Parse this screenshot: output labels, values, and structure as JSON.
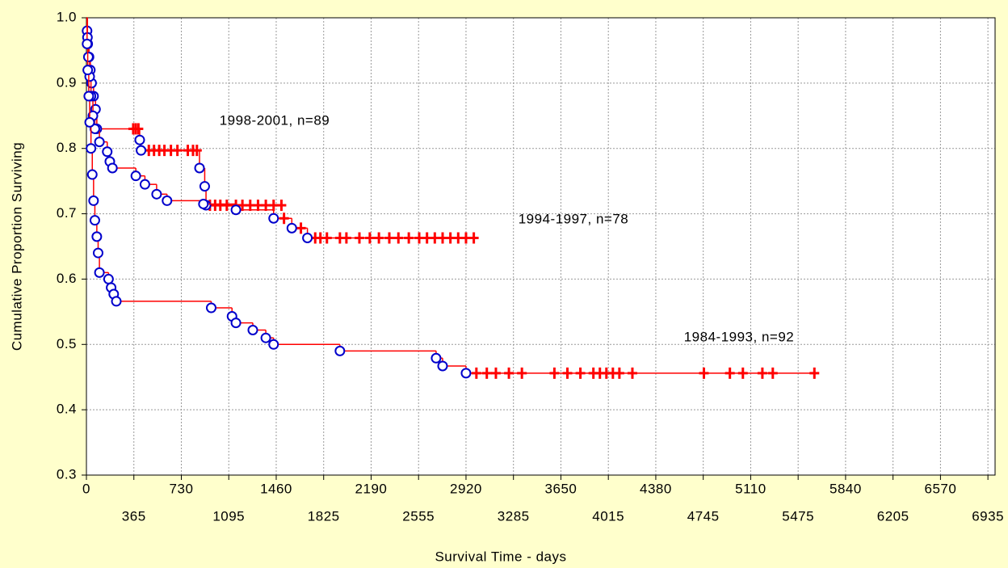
{
  "chart_data": {
    "type": "survival",
    "x_label": "Survival Time - days",
    "y_label": "Cumulative Proportion Surviving",
    "xlim": [
      0,
      6990
    ],
    "ylim": [
      0.3,
      1.0
    ],
    "xticks": [
      0,
      365,
      730,
      1095,
      1460,
      1825,
      2190,
      2555,
      2920,
      3285,
      3650,
      4015,
      4380,
      4745,
      5110,
      5475,
      5840,
      6205,
      6570,
      6935
    ],
    "yticks": [
      {
        "value": 0.3,
        "label": "0.3"
      },
      {
        "value": 0.4,
        "label": "0.4"
      },
      {
        "value": 0.5,
        "label": "0.5"
      },
      {
        "value": 0.6,
        "label": "0.6"
      },
      {
        "value": 0.7,
        "label": "0.7"
      },
      {
        "value": 0.8,
        "label": "0.8"
      },
      {
        "value": 0.9,
        "label": "0.9"
      },
      {
        "value": 1.0,
        "label": "1.0"
      }
    ],
    "grid": true,
    "line_color": "#ff0000",
    "event_color": "#0000cc",
    "series": [
      {
        "name": "1998-2001, n=89",
        "event_times": [
          0,
          5,
          10,
          20,
          30,
          40,
          55,
          70,
          80,
          410,
          420,
          870,
          910,
          920
        ],
        "survival": [
          1.0,
          0.98,
          0.96,
          0.94,
          0.92,
          0.9,
          0.88,
          0.86,
          0.83,
          0.813,
          0.797,
          0.77,
          0.742,
          0.713
        ],
        "censored_times": [
          360,
          380,
          400,
          480,
          520,
          560,
          600,
          650,
          700,
          780,
          820,
          850,
          950,
          990,
          1030,
          1080,
          1150,
          1200,
          1260,
          1320,
          1380,
          1440,
          1500
        ],
        "censored_survival": [
          0.83,
          0.83,
          0.83,
          0.797,
          0.797,
          0.797,
          0.797,
          0.797,
          0.797,
          0.797,
          0.797,
          0.797,
          0.713,
          0.713,
          0.713,
          0.713,
          0.713,
          0.713,
          0.713,
          0.713,
          0.713,
          0.713,
          0.713
        ]
      },
      {
        "name": "1994-1997, n=78",
        "event_times": [
          0,
          8,
          15,
          25,
          35,
          50,
          65,
          100,
          160,
          180,
          200,
          380,
          450,
          540,
          620,
          900,
          1150,
          1440,
          1580,
          1700
        ],
        "survival": [
          1.0,
          0.97,
          0.94,
          0.91,
          0.88,
          0.85,
          0.83,
          0.81,
          0.795,
          0.78,
          0.77,
          0.758,
          0.745,
          0.73,
          0.72,
          0.715,
          0.706,
          0.693,
          0.678,
          0.663
        ],
        "censored_times": [
          1520,
          1650,
          1760,
          1800,
          1850,
          1950,
          2000,
          2100,
          2180,
          2250,
          2330,
          2400,
          2480,
          2560,
          2620,
          2680,
          2740,
          2800,
          2860,
          2920,
          2980
        ],
        "censored_survival": [
          0.693,
          0.678,
          0.663,
          0.663,
          0.663,
          0.663,
          0.663,
          0.663,
          0.663,
          0.663,
          0.663,
          0.663,
          0.663,
          0.663,
          0.663,
          0.663,
          0.663,
          0.663,
          0.663,
          0.663,
          0.663
        ]
      },
      {
        "name": "1984-1993, n=92",
        "event_times": [
          0,
          5,
          10,
          18,
          25,
          35,
          45,
          55,
          65,
          80,
          90,
          100,
          170,
          190,
          210,
          230,
          960,
          1120,
          1150,
          1280,
          1380,
          1440,
          1950,
          2690,
          2740,
          2920
        ],
        "survival": [
          1.0,
          0.96,
          0.92,
          0.88,
          0.84,
          0.8,
          0.76,
          0.72,
          0.69,
          0.665,
          0.64,
          0.61,
          0.6,
          0.587,
          0.577,
          0.566,
          0.556,
          0.543,
          0.533,
          0.522,
          0.51,
          0.5,
          0.49,
          0.479,
          0.467,
          0.456
        ],
        "censored_times": [
          3000,
          3080,
          3150,
          3250,
          3350,
          3600,
          3700,
          3800,
          3900,
          3950,
          4000,
          4050,
          4100,
          4200,
          4750,
          4950,
          5050,
          5200,
          5280,
          5600
        ],
        "censored_survival": [
          0.456,
          0.456,
          0.456,
          0.456,
          0.456,
          0.456,
          0.456,
          0.456,
          0.456,
          0.456,
          0.456,
          0.456,
          0.456,
          0.456,
          0.456,
          0.456,
          0.456,
          0.456,
          0.456,
          0.456
        ]
      }
    ]
  }
}
